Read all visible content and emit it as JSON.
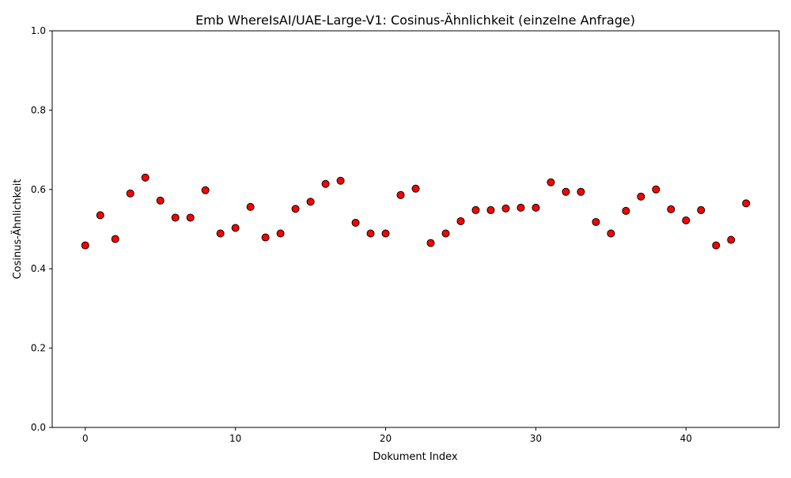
{
  "chart_data": {
    "type": "scatter",
    "title": "Emb WhereIsAI/UAE-Large-V1: Cosinus-Ähnlichkeit (einzelne Anfrage)",
    "xlabel": "Dokument Index",
    "ylabel": "Cosinus-Ähnlichkeit",
    "xlim": [
      -2.2,
      46.2
    ],
    "ylim": [
      0.0,
      1.0
    ],
    "x_ticks": [
      0,
      10,
      20,
      30,
      40
    ],
    "x_tick_labels": [
      "0",
      "10",
      "20",
      "30",
      "40"
    ],
    "y_ticks": [
      0.0,
      0.2,
      0.4,
      0.6,
      0.8,
      1.0
    ],
    "y_tick_labels": [
      "0.0",
      "0.2",
      "0.4",
      "0.6",
      "0.8",
      "1.0"
    ],
    "grid": false,
    "marker_color": "#ff0000",
    "marker_edge_color": "#000000",
    "x": [
      0,
      1,
      2,
      3,
      4,
      5,
      6,
      7,
      8,
      9,
      10,
      11,
      12,
      13,
      14,
      15,
      16,
      17,
      18,
      19,
      20,
      21,
      22,
      23,
      24,
      25,
      26,
      27,
      28,
      29,
      30,
      31,
      32,
      33,
      34,
      35,
      36,
      37,
      38,
      39,
      40,
      41,
      42,
      43,
      44
    ],
    "y": [
      0.459,
      0.535,
      0.475,
      0.59,
      0.63,
      0.572,
      0.529,
      0.529,
      0.598,
      0.489,
      0.503,
      0.556,
      0.479,
      0.489,
      0.551,
      0.569,
      0.614,
      0.622,
      0.516,
      0.489,
      0.489,
      0.586,
      0.602,
      0.465,
      0.489,
      0.52,
      0.548,
      0.548,
      0.552,
      0.554,
      0.554,
      0.618,
      0.594,
      0.594,
      0.518,
      0.489,
      0.546,
      0.582,
      0.6,
      0.55,
      0.522,
      0.548,
      0.459,
      0.473,
      0.565
    ]
  }
}
